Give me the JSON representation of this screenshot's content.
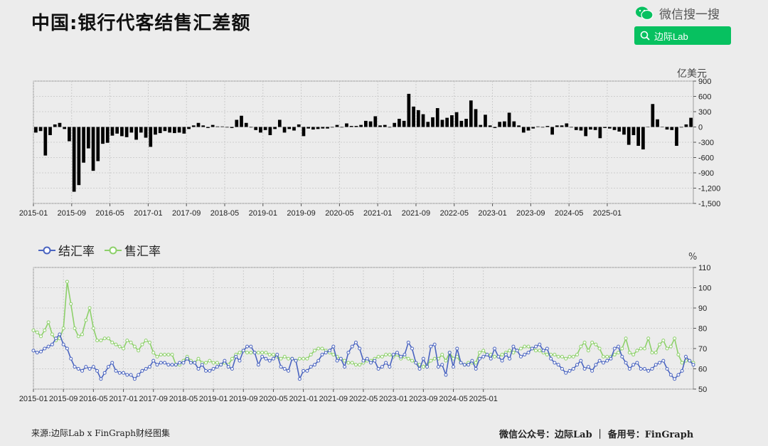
{
  "title": "中国:银行代客结售汇差额",
  "header": {
    "wechat_label": "微信搜一搜",
    "wechat_icon": "wechat-icon",
    "search_icon": "search-icon",
    "search_text": "边际Lab",
    "search_color": "#07c160"
  },
  "footer": {
    "source": "来源:边际Lab x FinGraph财经图集",
    "account": "微信公众号：边际Lab ｜ 备用号：FinGraph"
  },
  "chart_data": [
    {
      "type": "bar",
      "unit": "亿美元",
      "color": "#000000",
      "ylim": [
        -1500,
        900
      ],
      "yticks": [
        900,
        600,
        300,
        0,
        -300,
        -600,
        -900,
        -1200,
        -1500
      ],
      "ytick_labels": [
        "900",
        "600",
        "300",
        "0",
        "-300",
        "-600",
        "-900",
        "-1,200",
        "-1,500"
      ],
      "xtick_labels": [
        "2015-01",
        "2015-09",
        "2016-05",
        "2017-01",
        "2017-09",
        "2018-05",
        "2019-01",
        "2019-09",
        "2020-05",
        "2021-01",
        "2021-09",
        "2022-05",
        "2023-01",
        "2023-09",
        "2024-05",
        "2025-01"
      ],
      "start": "2015-01",
      "grid": true,
      "values": [
        -110,
        -80,
        -560,
        -160,
        50,
        80,
        -40,
        -280,
        -1270,
        -1140,
        -700,
        -420,
        -860,
        -670,
        -330,
        -310,
        -170,
        -130,
        -180,
        -200,
        -110,
        -250,
        -110,
        -210,
        -390,
        -150,
        -120,
        -80,
        -110,
        -120,
        -110,
        -130,
        -40,
        30,
        80,
        30,
        -20,
        40,
        10,
        10,
        -10,
        -20,
        140,
        220,
        80,
        -10,
        -60,
        -110,
        -60,
        -160,
        -40,
        140,
        -110,
        -40,
        -70,
        50,
        -180,
        -30,
        -50,
        -40,
        -30,
        -30,
        -10,
        40,
        -10,
        70,
        20,
        20,
        40,
        120,
        110,
        210,
        30,
        40,
        -10,
        80,
        160,
        120,
        650,
        400,
        330,
        250,
        100,
        190,
        370,
        140,
        180,
        230,
        290,
        120,
        160,
        520,
        350,
        40,
        240,
        30,
        -20,
        100,
        110,
        280,
        110,
        30,
        -110,
        -70,
        -30,
        10,
        -10,
        20,
        -150,
        30,
        30,
        70,
        -10,
        -60,
        -70,
        -180,
        -50,
        -60,
        -220,
        -20,
        -30,
        -60,
        -90,
        -150,
        -350,
        -160,
        -370,
        -440,
        0,
        450,
        150,
        0,
        -50,
        -60,
        -370,
        -10,
        50,
        180
      ]
    },
    {
      "type": "line",
      "unit": "%",
      "ylim": [
        50,
        110
      ],
      "yticks": [
        110,
        100,
        90,
        80,
        70,
        60,
        50
      ],
      "xtick_labels": [
        "2015-01",
        "2015-09",
        "2016-05",
        "2017-01",
        "2017-09",
        "2018-05",
        "2019-01",
        "2019-09",
        "2020-05",
        "2021-01",
        "2021-09",
        "2022-05",
        "2023-01",
        "2023-09",
        "2024-05",
        "2025-01"
      ],
      "start": "2015-01",
      "grid": true,
      "legend": "top-left",
      "series": [
        {
          "name": "结汇率",
          "color": "#4a64c0",
          "values": [
            69,
            68,
            68.5,
            70,
            71,
            72,
            75,
            77,
            72,
            70,
            65,
            61,
            60,
            59,
            61,
            60,
            61,
            59,
            55,
            58,
            61,
            63,
            59,
            58,
            58,
            57,
            57,
            55,
            57,
            59,
            60,
            61,
            64,
            62,
            63,
            63,
            62,
            62,
            62,
            63,
            63,
            65,
            63,
            63,
            60,
            62,
            59,
            59,
            60,
            61,
            62,
            64,
            61,
            60,
            66,
            64,
            69,
            71,
            71,
            68,
            62,
            66,
            65,
            64,
            65,
            67,
            61,
            60,
            59,
            65,
            64,
            55,
            59,
            59,
            61,
            62,
            64,
            67,
            68,
            69,
            71,
            64,
            65,
            61,
            68,
            71,
            73,
            70,
            64,
            65,
            63,
            64,
            60,
            61,
            63,
            61,
            67,
            68,
            66,
            67,
            73,
            70,
            63,
            60,
            65,
            61,
            71,
            72,
            61,
            62,
            57,
            68,
            61,
            70,
            63,
            62,
            62,
            64,
            60,
            65,
            66,
            67,
            65,
            70,
            66,
            64,
            67,
            65,
            71,
            69,
            66,
            67,
            68,
            70,
            71,
            72,
            69,
            70,
            65,
            63,
            62,
            60,
            58,
            59,
            60,
            62,
            64,
            60,
            61,
            59,
            62,
            64,
            63,
            64,
            65,
            70,
            71,
            66,
            63,
            60,
            62,
            63,
            60,
            60,
            59,
            60,
            62,
            63,
            64,
            60,
            57,
            55,
            57,
            59,
            66,
            64,
            62
          ]
        },
        {
          "name": "售汇率",
          "color": "#8dd06a",
          "values": [
            79,
            78,
            76,
            79,
            83,
            77,
            74,
            75,
            80,
            103,
            92,
            80,
            76,
            77,
            84,
            90,
            80,
            74,
            74,
            75,
            75,
            73,
            72,
            71,
            70,
            74,
            73,
            71,
            69,
            72,
            74,
            73,
            68,
            66,
            67,
            67,
            67,
            67,
            62,
            62,
            64,
            66,
            64,
            63,
            65,
            63,
            63,
            64,
            63,
            63,
            62,
            63,
            62,
            65,
            67,
            68,
            69,
            68,
            68,
            68,
            68,
            68,
            68,
            67,
            67,
            66,
            65,
            66,
            65,
            65,
            64,
            65,
            65,
            65,
            67,
            69,
            70,
            70,
            69,
            68,
            67,
            66,
            65,
            64,
            63,
            63,
            62,
            62,
            63,
            64,
            64,
            65,
            66,
            66,
            67,
            67,
            66,
            67,
            65,
            66,
            65,
            64,
            63,
            62,
            61,
            62,
            64,
            65,
            65,
            67,
            64,
            68,
            65,
            66,
            63,
            62,
            63,
            63,
            63,
            68,
            69,
            67,
            67,
            66,
            66,
            67,
            68,
            69,
            68,
            69,
            70,
            71,
            71,
            70,
            69,
            69,
            68,
            67,
            67,
            67,
            66,
            66,
            65,
            66,
            66,
            67,
            71,
            73,
            69,
            73,
            72,
            70,
            66,
            66,
            66,
            67,
            68,
            70,
            75,
            68,
            67,
            69,
            70,
            70,
            75,
            68,
            68,
            72,
            74,
            70,
            71,
            75,
            67,
            63,
            64,
            64,
            63
          ]
        }
      ]
    }
  ]
}
